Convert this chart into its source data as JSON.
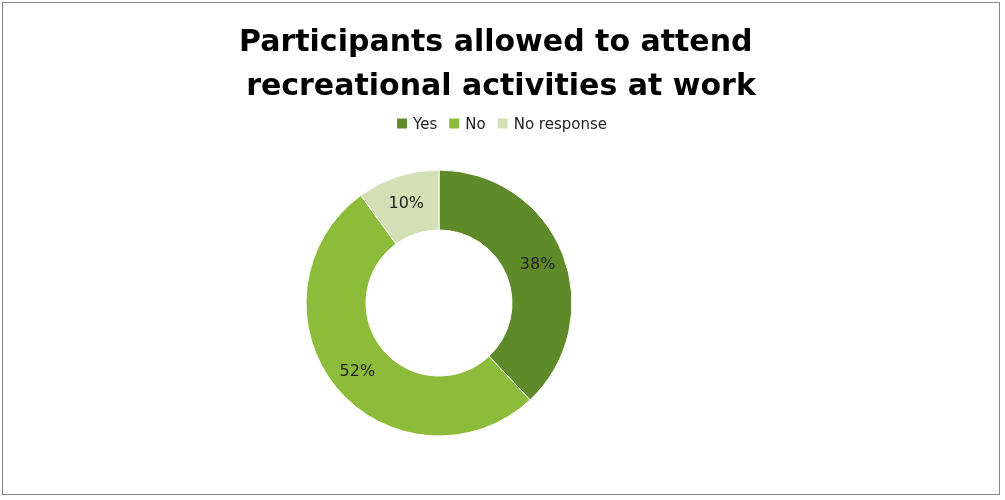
{
  "chart_data": {
    "type": "donut",
    "title": "Participants allowed to attend recreational activities at work",
    "categories": [
      "Yes",
      "No",
      "No response"
    ],
    "values": [
      38,
      52,
      10
    ],
    "value_labels": [
      "38%",
      "52%",
      "10%"
    ],
    "colors": [
      "#5f8a2a",
      "#8dbb3a",
      "#d3dfb4"
    ],
    "legend": "top"
  }
}
